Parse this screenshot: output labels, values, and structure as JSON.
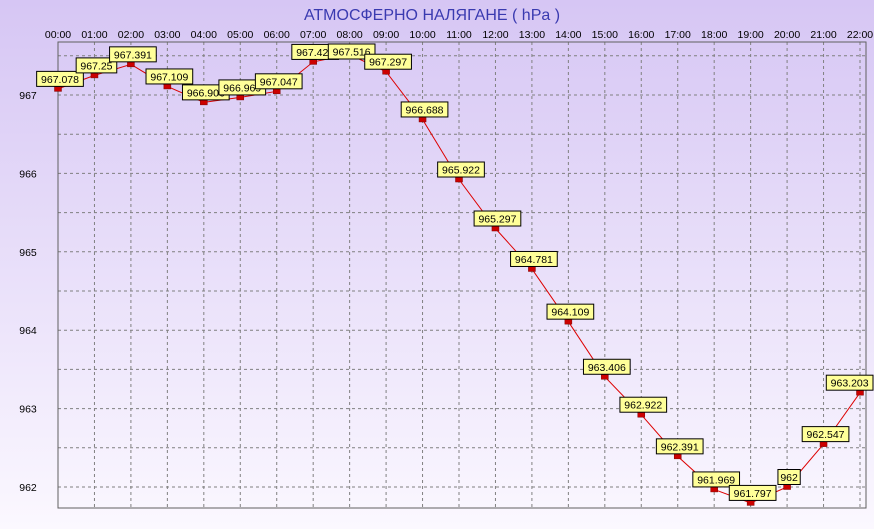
{
  "chart_data": {
    "type": "line",
    "title": "АТМОСФЕРНО НАЛЯГАНЕ  ( hPa )",
    "xlabel": "",
    "ylabel": "",
    "categories": [
      "00:00",
      "01:00",
      "02:00",
      "03:00",
      "04:00",
      "05:00",
      "06:00",
      "07:00",
      "08:00",
      "09:00",
      "10:00",
      "11:00",
      "12:00",
      "13:00",
      "14:00",
      "15:00",
      "16:00",
      "17:00",
      "18:00",
      "19:00",
      "20:00",
      "21:00",
      "22:00"
    ],
    "series": [
      {
        "values": [
          967.078,
          967.25,
          967.391,
          967.109,
          966.906,
          966.969,
          967.047,
          967.422,
          967.516,
          967.297,
          966.688,
          965.922,
          965.297,
          964.781,
          964.109,
          963.406,
          962.922,
          962.391,
          961.969,
          961.797,
          962,
          962.547,
          963.203
        ],
        "labels": [
          "967.078",
          "967.25",
          "967.391",
          "967.109",
          "966.906",
          "966.969",
          "967.047",
          "967.422",
          "967.516",
          "967.297",
          "966.688",
          "965.922",
          "965.297",
          "964.781",
          "964.109",
          "963.406",
          "962.922",
          "962.391",
          "961.969",
          "961.797",
          "962",
          "962.547",
          "963.203"
        ],
        "color": "#dd0000"
      }
    ],
    "y_ticks": [
      "962",
      "963",
      "964",
      "965",
      "966",
      "967"
    ],
    "ylim": [
      961.7,
      967.7
    ],
    "grid": true,
    "legend": "none",
    "colors": {
      "title": "#3a3ab0",
      "line": "#dd0000",
      "marker": "#cc0000",
      "label_bg": "#ffff99",
      "grid": "#808080",
      "bg_top": "#d6c6f4",
      "bg_bottom": "#fbf8ff"
    }
  }
}
